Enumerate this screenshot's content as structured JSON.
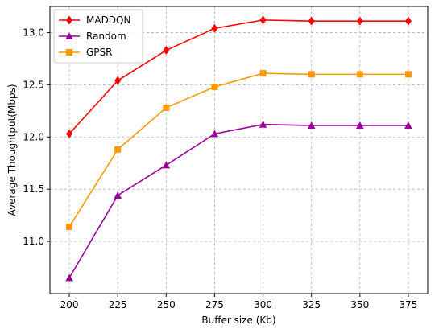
{
  "chart_data": {
    "type": "line",
    "title": "",
    "xlabel": "Buffer size (Kb)",
    "ylabel": "Average Thoughtput(Mbps)",
    "x": [
      200,
      225,
      250,
      275,
      300,
      325,
      350,
      375
    ],
    "xlim": [
      190,
      385
    ],
    "ylim": [
      10.5,
      13.25
    ],
    "xticks": [
      200,
      225,
      250,
      275,
      300,
      325,
      350,
      375
    ],
    "yticks": [
      11.0,
      11.5,
      12.0,
      12.5,
      13.0
    ],
    "ytick_labels": [
      "11.0",
      "11.5",
      "12.0",
      "12.5",
      "13.0"
    ],
    "grid": true,
    "legend_position": "top-left",
    "series": [
      {
        "name": "MADDQN",
        "color": "#ff0000",
        "marker": "diamond",
        "values": [
          12.03,
          12.54,
          12.83,
          13.04,
          13.12,
          13.11,
          13.11,
          13.11
        ]
      },
      {
        "name": "Random",
        "color": "#990099",
        "marker": "triangle",
        "values": [
          10.65,
          11.44,
          11.73,
          12.03,
          12.12,
          12.11,
          12.11,
          12.11
        ]
      },
      {
        "name": "GPSR",
        "color": "#ff9900",
        "marker": "square",
        "values": [
          11.14,
          11.88,
          12.28,
          12.48,
          12.61,
          12.6,
          12.6,
          12.6
        ]
      }
    ]
  }
}
